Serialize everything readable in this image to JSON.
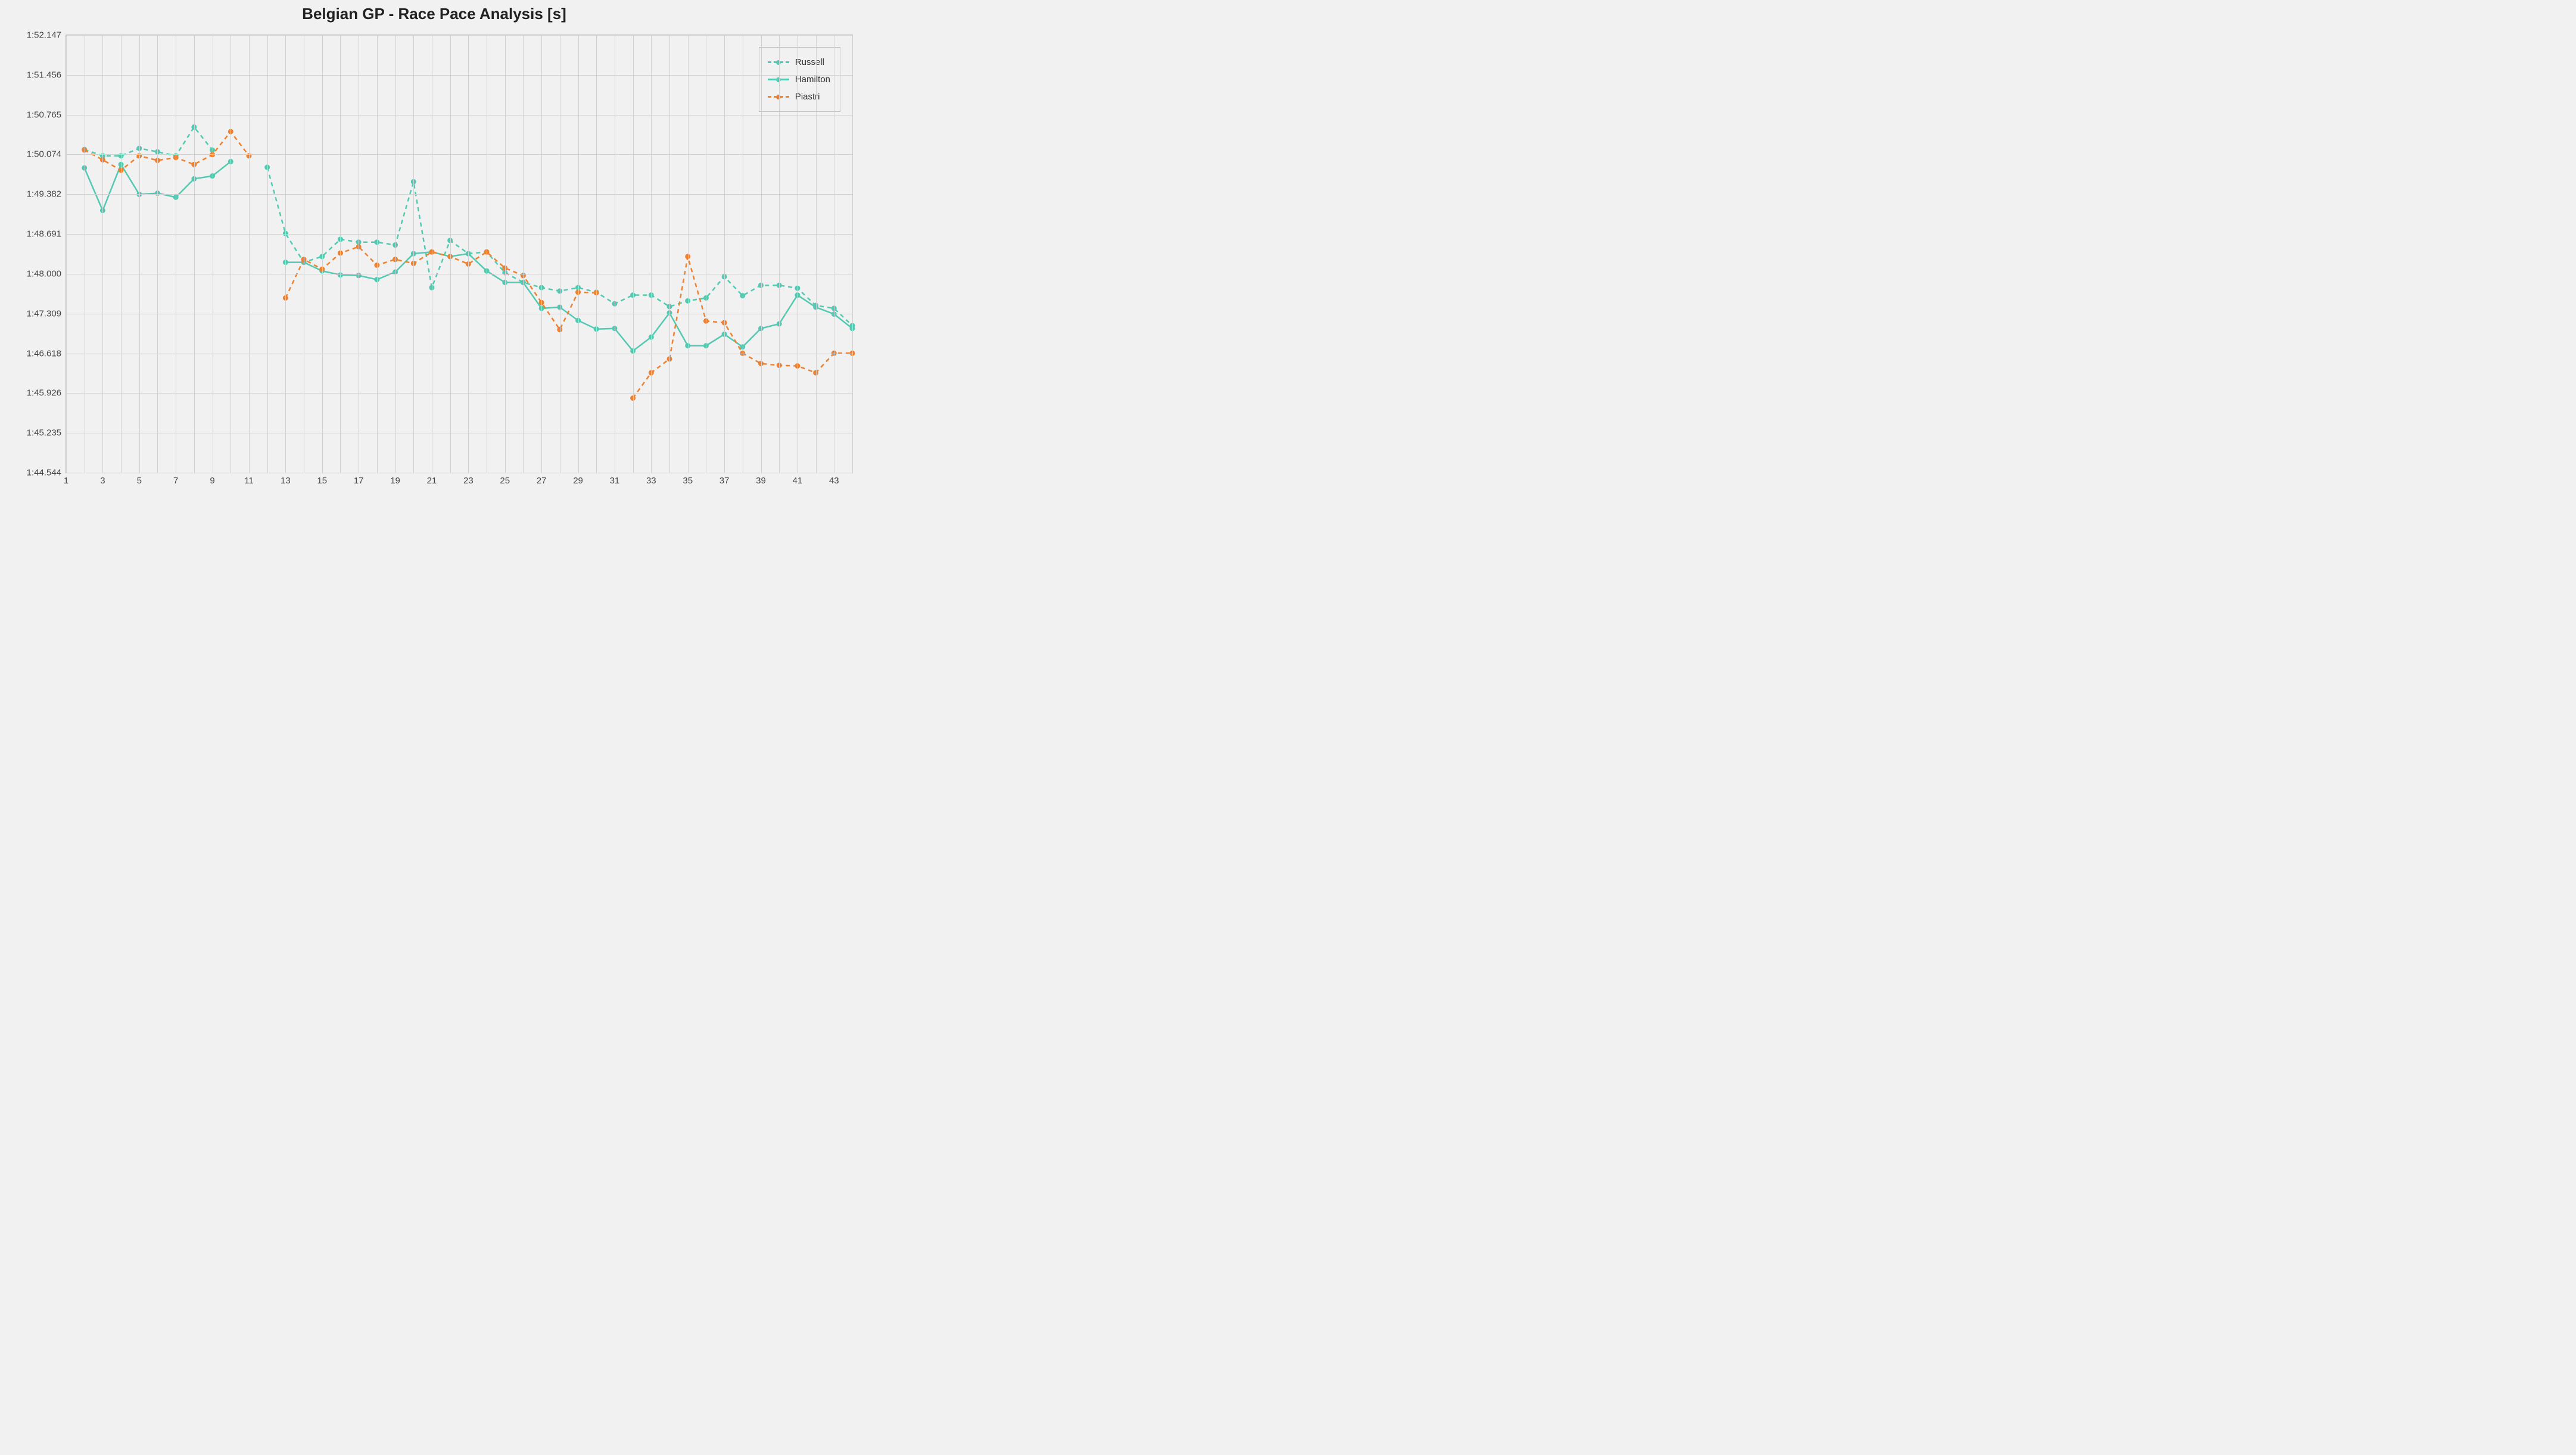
{
  "chart": {
    "type": "line",
    "title": "Belgian GP - Race Pace Analysis [s]",
    "title_fontsize": 26,
    "title_color": "#222222",
    "background_color": "#f1f1f1",
    "plot_background": "#f1f1f1",
    "grid_color": "#d0d0d0",
    "border_color": "#bdbdbd",
    "tick_font_size": 15,
    "tick_color": "#444444",
    "x_axis": {
      "min": 1,
      "max": 44,
      "ticks": [
        1,
        3,
        5,
        7,
        9,
        11,
        13,
        15,
        17,
        19,
        21,
        23,
        25,
        27,
        29,
        31,
        33,
        35,
        37,
        39,
        41,
        43
      ]
    },
    "y_axis": {
      "min": 104.544,
      "max": 112.147,
      "tick_labels": [
        "1:44.544",
        "1:45.235",
        "1:45.926",
        "1:46.618",
        "1:47.309",
        "1:48.000",
        "1:48.691",
        "1:49.382",
        "1:50.074",
        "1:50.765",
        "1:51.456",
        "1:52.147"
      ],
      "tick_values": [
        104.544,
        105.235,
        105.926,
        106.618,
        107.309,
        108.0,
        108.691,
        109.382,
        110.074,
        110.765,
        111.456,
        112.147
      ]
    },
    "marker_radius": 4,
    "line_width": 2.5,
    "legend": {
      "position": "top-right",
      "background": "#f1f1f1",
      "border_color": "#bdbdbd",
      "items": [
        {
          "key": "russell",
          "label": "Russell",
          "color": "#53c9b2",
          "dash": "6,5",
          "fill": "#53c9b2"
        },
        {
          "key": "hamilton",
          "label": "Hamilton",
          "color": "#53c9b2",
          "dash": "",
          "fill": "#53c9b2"
        },
        {
          "key": "piastri",
          "label": "Piastri",
          "color": "#ee8132",
          "dash": "6,5",
          "fill": "#ee8132"
        }
      ]
    },
    "series": {
      "russell": {
        "color": "#53c9b2",
        "dash": true,
        "points": [
          {
            "x": 2,
            "y": 110.16
          },
          {
            "x": 3,
            "y": 110.05
          },
          {
            "x": 4,
            "y": 110.05
          },
          {
            "x": 5,
            "y": 110.18
          },
          {
            "x": 6,
            "y": 110.12
          },
          {
            "x": 7,
            "y": 110.05
          },
          {
            "x": 8,
            "y": 110.55
          },
          {
            "x": 9,
            "y": 110.15
          },
          {
            "x": 12,
            "y": 109.85
          },
          {
            "x": 13,
            "y": 108.7
          },
          {
            "x": 14,
            "y": 108.2
          },
          {
            "x": 15,
            "y": 108.3
          },
          {
            "x": 16,
            "y": 108.6
          },
          {
            "x": 17,
            "y": 108.55
          },
          {
            "x": 18,
            "y": 108.55
          },
          {
            "x": 19,
            "y": 108.5
          },
          {
            "x": 20,
            "y": 109.6
          },
          {
            "x": 21,
            "y": 107.76
          },
          {
            "x": 22,
            "y": 108.58
          },
          {
            "x": 23,
            "y": 108.35
          },
          {
            "x": 24,
            "y": 108.38
          },
          {
            "x": 25,
            "y": 108.02
          },
          {
            "x": 26,
            "y": 107.85
          },
          {
            "x": 27,
            "y": 107.76
          },
          {
            "x": 28,
            "y": 107.7
          },
          {
            "x": 29,
            "y": 107.76
          },
          {
            "x": 30,
            "y": 107.68
          },
          {
            "x": 31,
            "y": 107.48
          },
          {
            "x": 32,
            "y": 107.63
          },
          {
            "x": 33,
            "y": 107.63
          },
          {
            "x": 34,
            "y": 107.43
          },
          {
            "x": 35,
            "y": 107.53
          },
          {
            "x": 36,
            "y": 107.58
          },
          {
            "x": 37,
            "y": 107.95
          },
          {
            "x": 38,
            "y": 107.62
          },
          {
            "x": 39,
            "y": 107.8
          },
          {
            "x": 40,
            "y": 107.8
          },
          {
            "x": 41,
            "y": 107.75
          },
          {
            "x": 42,
            "y": 107.45
          },
          {
            "x": 43,
            "y": 107.4
          },
          {
            "x": 44,
            "y": 107.1
          }
        ]
      },
      "hamilton": {
        "color": "#53c9b2",
        "dash": false,
        "points": [
          {
            "x": 2,
            "y": 109.84
          },
          {
            "x": 3,
            "y": 109.1
          },
          {
            "x": 4,
            "y": 109.9
          },
          {
            "x": 5,
            "y": 109.38
          },
          {
            "x": 6,
            "y": 109.4
          },
          {
            "x": 7,
            "y": 109.33
          },
          {
            "x": 8,
            "y": 109.65
          },
          {
            "x": 9,
            "y": 109.7
          },
          {
            "x": 10,
            "y": 109.95
          },
          {
            "x": 13,
            "y": 108.2
          },
          {
            "x": 14,
            "y": 108.2
          },
          {
            "x": 15,
            "y": 108.05
          },
          {
            "x": 16,
            "y": 107.98
          },
          {
            "x": 17,
            "y": 107.97
          },
          {
            "x": 18,
            "y": 107.9
          },
          {
            "x": 19,
            "y": 108.03
          },
          {
            "x": 20,
            "y": 108.35
          },
          {
            "x": 21,
            "y": 108.38
          },
          {
            "x": 22,
            "y": 108.3
          },
          {
            "x": 23,
            "y": 108.35
          },
          {
            "x": 24,
            "y": 108.05
          },
          {
            "x": 25,
            "y": 107.85
          },
          {
            "x": 26,
            "y": 107.85
          },
          {
            "x": 27,
            "y": 107.4
          },
          {
            "x": 28,
            "y": 107.42
          },
          {
            "x": 29,
            "y": 107.19
          },
          {
            "x": 30,
            "y": 107.04
          },
          {
            "x": 31,
            "y": 107.05
          },
          {
            "x": 32,
            "y": 106.66
          },
          {
            "x": 33,
            "y": 106.9
          },
          {
            "x": 34,
            "y": 107.32
          },
          {
            "x": 35,
            "y": 106.75
          },
          {
            "x": 36,
            "y": 106.75
          },
          {
            "x": 37,
            "y": 106.95
          },
          {
            "x": 38,
            "y": 106.73
          },
          {
            "x": 39,
            "y": 107.05
          },
          {
            "x": 40,
            "y": 107.13
          },
          {
            "x": 41,
            "y": 107.63
          },
          {
            "x": 42,
            "y": 107.42
          },
          {
            "x": 43,
            "y": 107.3
          },
          {
            "x": 44,
            "y": 107.05
          }
        ]
      },
      "piastri": {
        "color": "#ee8132",
        "dash": true,
        "points": [
          {
            "x": 2,
            "y": 110.15
          },
          {
            "x": 3,
            "y": 109.98
          },
          {
            "x": 4,
            "y": 109.8
          },
          {
            "x": 5,
            "y": 110.05
          },
          {
            "x": 6,
            "y": 109.97
          },
          {
            "x": 7,
            "y": 110.02
          },
          {
            "x": 8,
            "y": 109.9
          },
          {
            "x": 9,
            "y": 110.07
          },
          {
            "x": 10,
            "y": 110.47
          },
          {
            "x": 11,
            "y": 110.05
          },
          {
            "x": 13,
            "y": 107.58
          },
          {
            "x": 14,
            "y": 108.25
          },
          {
            "x": 15,
            "y": 108.08
          },
          {
            "x": 16,
            "y": 108.36
          },
          {
            "x": 17,
            "y": 108.47
          },
          {
            "x": 18,
            "y": 108.15
          },
          {
            "x": 19,
            "y": 108.25
          },
          {
            "x": 20,
            "y": 108.18
          },
          {
            "x": 21,
            "y": 108.38
          },
          {
            "x": 22,
            "y": 108.3
          },
          {
            "x": 23,
            "y": 108.17
          },
          {
            "x": 24,
            "y": 108.38
          },
          {
            "x": 25,
            "y": 108.1
          },
          {
            "x": 26,
            "y": 107.97
          },
          {
            "x": 27,
            "y": 107.5
          },
          {
            "x": 28,
            "y": 107.03
          },
          {
            "x": 29,
            "y": 107.68
          },
          {
            "x": 30,
            "y": 107.67
          },
          {
            "x": 32,
            "y": 105.84
          },
          {
            "x": 33,
            "y": 106.28
          },
          {
            "x": 34,
            "y": 106.52
          },
          {
            "x": 35,
            "y": 108.3
          },
          {
            "x": 36,
            "y": 107.18
          },
          {
            "x": 37,
            "y": 107.15
          },
          {
            "x": 38,
            "y": 106.62
          },
          {
            "x": 39,
            "y": 106.44
          },
          {
            "x": 40,
            "y": 106.41
          },
          {
            "x": 41,
            "y": 106.4
          },
          {
            "x": 42,
            "y": 106.28
          },
          {
            "x": 43,
            "y": 106.62
          },
          {
            "x": 44,
            "y": 106.62
          }
        ]
      }
    }
  }
}
